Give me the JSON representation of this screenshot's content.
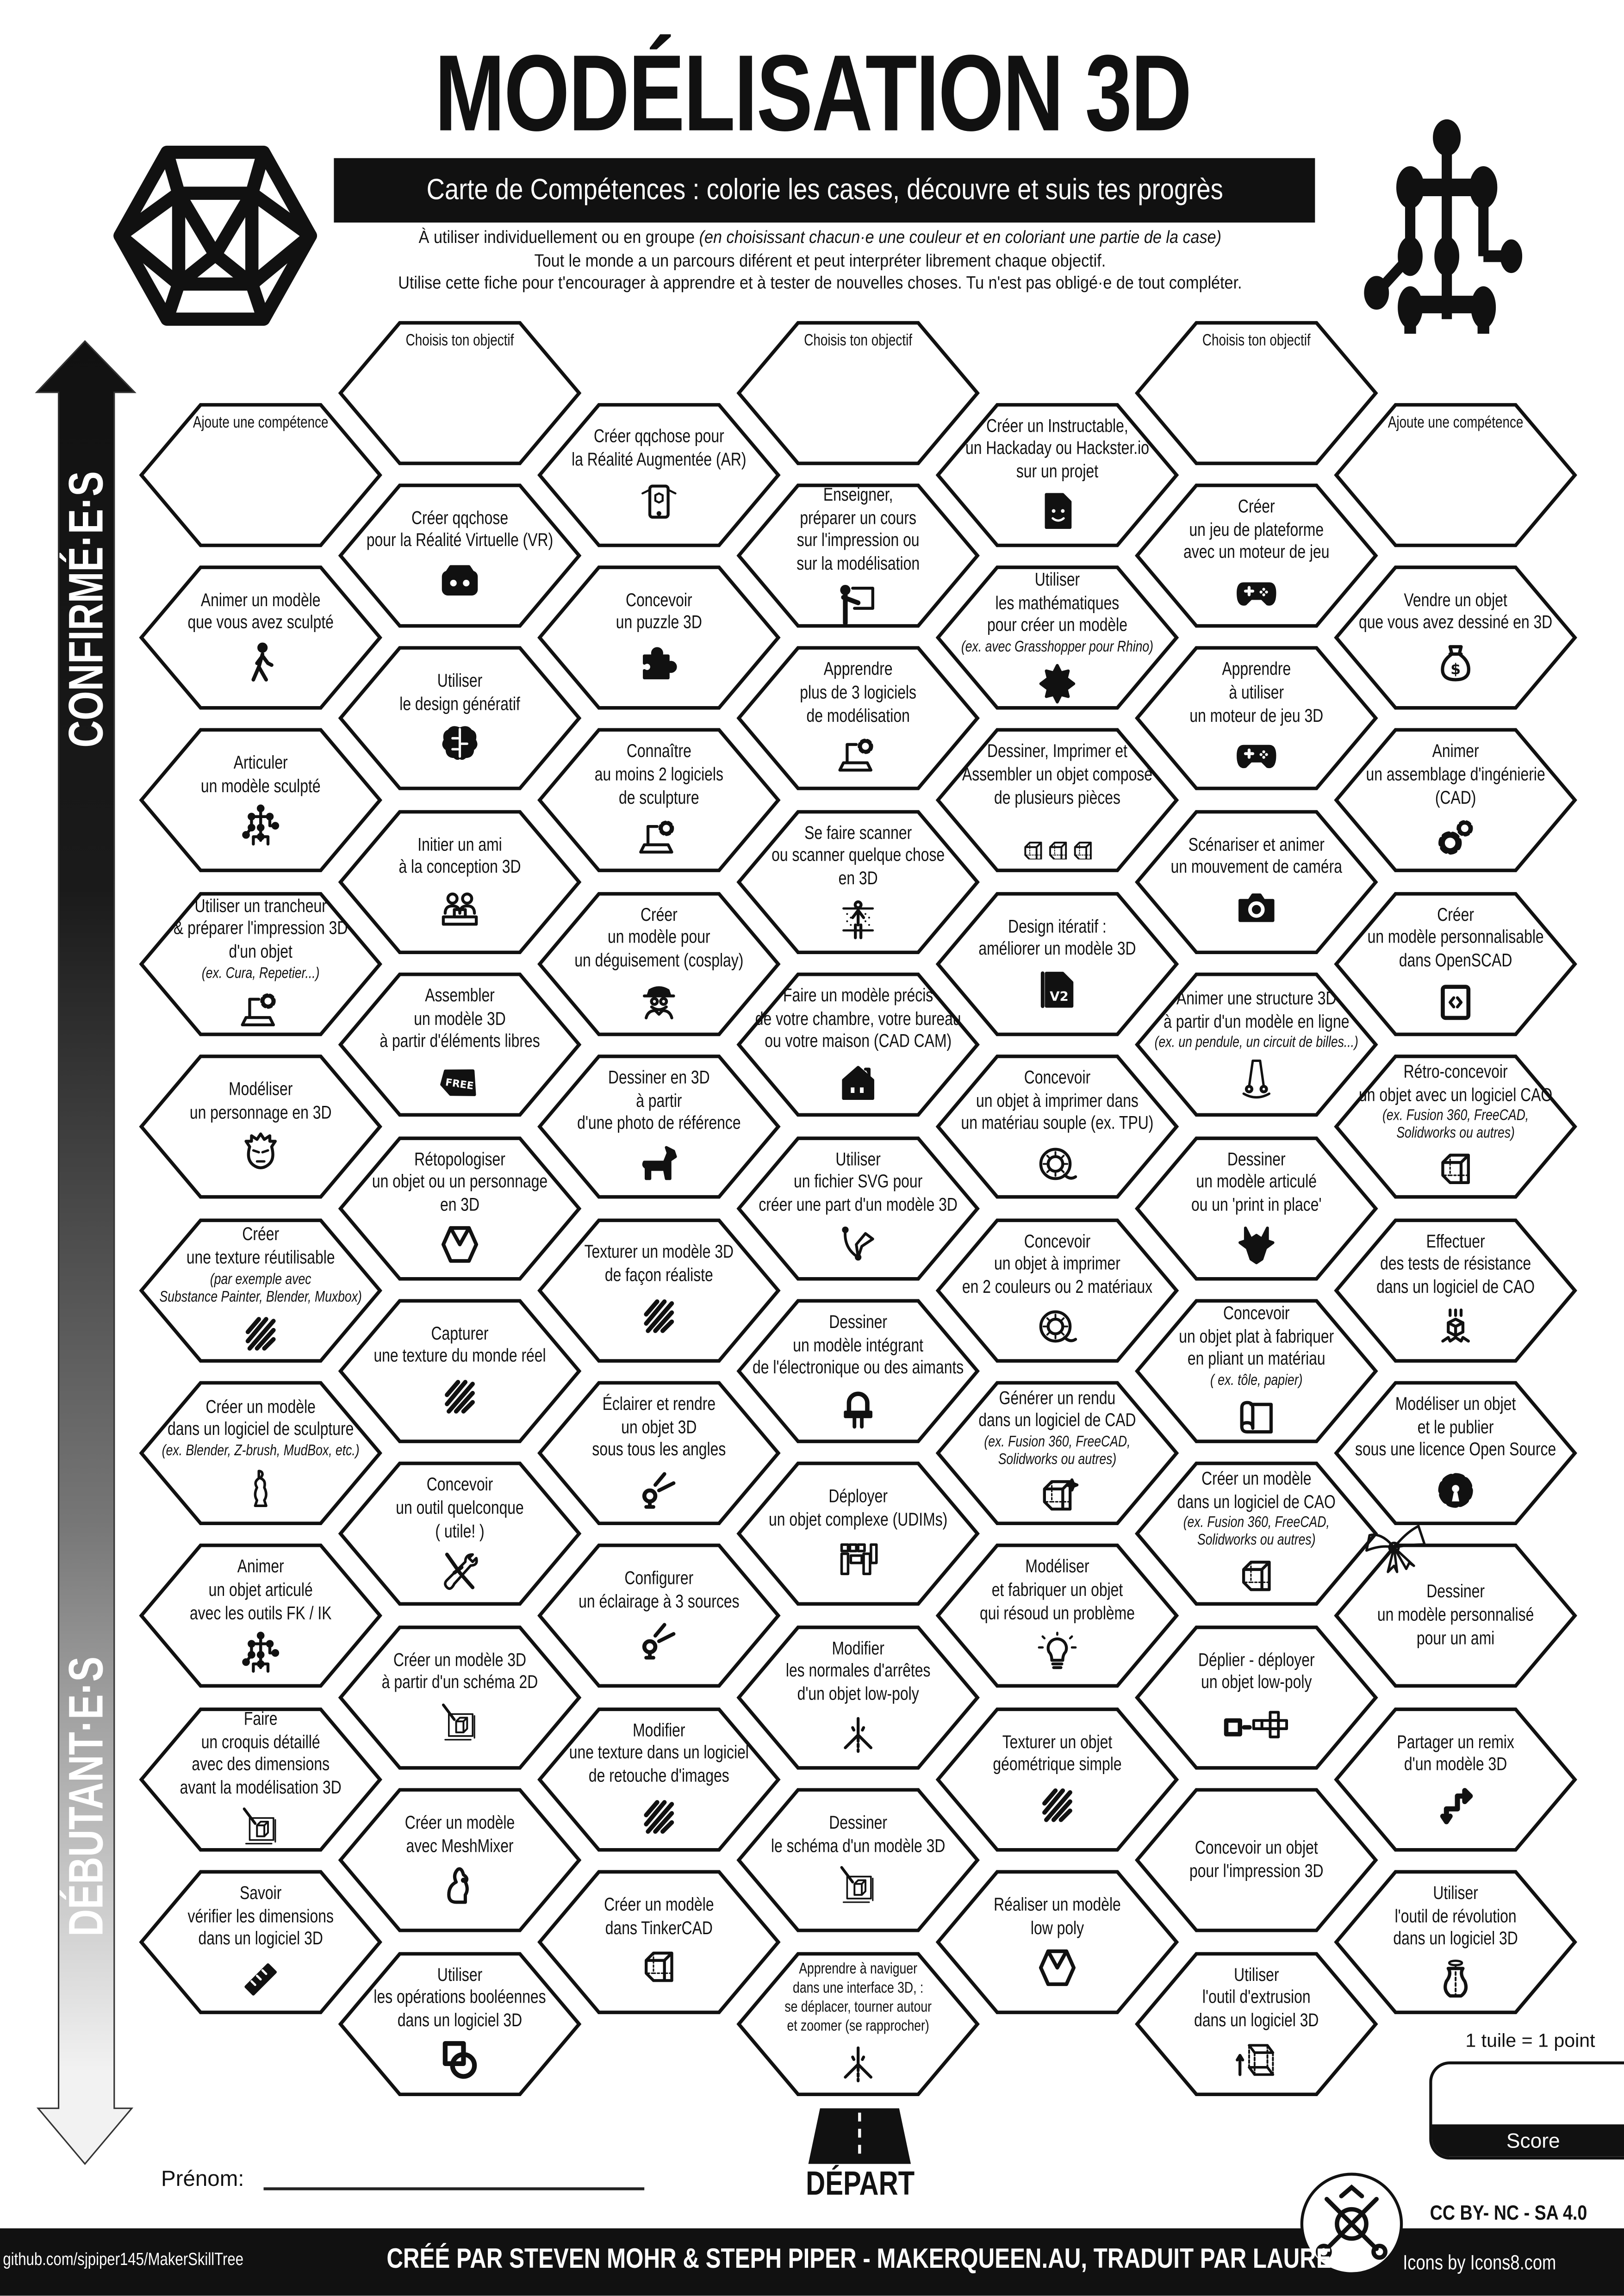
{
  "header": {
    "title": "MODÉLISATION 3D",
    "subtitle": "Carte de Compétences : colorie les cases, découvre et suis tes progrès",
    "intro_line1": "À utiliser individuellement ou en groupe ",
    "intro_line1_italic": "(en choisissant chacun·e une couleur et en coloriant une partie de la case)",
    "intro_line2": "Tout le monde a un parcours diférent et peut interpréter librement chaque objectif.",
    "intro_line3": "Utilise cette fiche pour t'encourager à apprendre et à tester de nouvelles choses. Tu n'est pas obligé·e de tout compléter.",
    "left_logo_icon": "icosahedron-icon",
    "right_logo_icon": "skeleton-icon"
  },
  "progress_arrow": {
    "top_label": "CONFIRMÉ·E·S",
    "bottom_label": "DÉBUTANT·E·S"
  },
  "columns": [
    [
      {
        "text": "Ajoute une compétence",
        "placeholder": true
      },
      {
        "text": "Animer un modèle\nque vous avez sculpté",
        "icon": "walking-person"
      },
      {
        "text": "Articuler\nun modèle sculpté",
        "icon": "skeleton"
      },
      {
        "text": "Utiliser un trancheur\n& préparer l'impression 3D\nd'un objet",
        "note": "(ex. Cura, Repetier...)",
        "icon": "laptop-gear"
      },
      {
        "text": "Modéliser\nun personnage en 3D",
        "icon": "face"
      },
      {
        "text": "Créer\nune texture réutilisable",
        "note": "(par exemple avec\nSubstance Painter, Blender, Muxbox)",
        "icon": "hatch"
      },
      {
        "text": "Créer un modèle\ndans un logiciel de sculpture",
        "note": "(ex. Blender, Z-brush, MudBox, etc.)",
        "icon": "statue"
      },
      {
        "text": "Animer\nun objet articulé\navec les outils FK / IK",
        "icon": "skeleton"
      },
      {
        "text": "Faire\nun croquis détaillé\navec des dimensions\navant la modélisation 3D",
        "icon": "sketch-cube"
      },
      {
        "text": "Savoir\nvérifier les dimensions\ndans un logiciel 3D",
        "icon": "ruler"
      }
    ],
    [
      {
        "text": "Choisis ton objectif",
        "placeholder": true
      },
      {
        "text": "Créer qqchose\npour la Réalité Virtuelle (VR)",
        "icon": "vr-headset"
      },
      {
        "text": "Utiliser\nle design génératif",
        "icon": "brain"
      },
      {
        "text": "Initier un ami\nà la conception 3D",
        "icon": "two-people"
      },
      {
        "text": "Assembler\nun modèle 3D\nà partir d'éléments libres",
        "icon": "free-tag"
      },
      {
        "text": "Rétopologiser\nun objet ou un personnage\nen 3D",
        "icon": "polyhedron"
      },
      {
        "text": "Capturer\nune texture du monde réel",
        "icon": "hatch"
      },
      {
        "text": "Concevoir\nun outil quelconque\n( utile! )",
        "icon": "tools"
      },
      {
        "text": "Créer un modèle 3D\nà partir d'un schéma 2D",
        "icon": "sketch-cube"
      },
      {
        "text": "Créer un modèle\navec MeshMixer",
        "icon": "rabbit"
      },
      {
        "text": "Utiliser\nles opérations booléennes\ndans un logiciel 3D",
        "icon": "boolean"
      }
    ],
    [
      {
        "text": "Créer qqchose pour\nla Réalité Augmentée (AR)",
        "icon": "phone-ar"
      },
      {
        "text": "Concevoir\nun puzzle 3D",
        "icon": "puzzle"
      },
      {
        "text": "Connaître\nau moins 2 logiciels\nde sculpture",
        "icon": "laptop-gear"
      },
      {
        "text": "Créer\nun modèle pour\nun déguisement (cosplay)",
        "icon": "spy"
      },
      {
        "text": "Dessiner en 3D\nà partir\nd'une photo de référence",
        "icon": "dog"
      },
      {
        "text": "Texturer un modèle 3D\nde façon réaliste",
        "icon": "hatch"
      },
      {
        "text": "Éclairer et rendre\nun objet 3D\nsous tous les angles",
        "icon": "spotlight"
      },
      {
        "text": "Configurer\nun éclairage à 3 sources",
        "icon": "spotlight"
      },
      {
        "text": "Modifier\nune texture dans un logiciel\nde retouche d'images",
        "icon": "hatch"
      },
      {
        "text": "Créer un modèle\ndans TinkerCAD",
        "icon": "cube"
      }
    ],
    [
      {
        "text": "Choisis ton objectif",
        "placeholder": true
      },
      {
        "text": "Enseigner,\npréparer un cours\nsur l'impression ou\nsur la modélisation",
        "icon": "teacher"
      },
      {
        "text": "Apprendre\nplus de 3 logiciels\nde modélisation",
        "icon": "laptop-gear"
      },
      {
        "text": "Se faire scanner\nou scanner quelque chose\nen 3D",
        "icon": "body-scan"
      },
      {
        "text": "Faire un modèle précis\nde votre chambre, votre bureau\nou votre maison (CAD CAM)",
        "icon": "house"
      },
      {
        "text": "Utiliser\nun fichier SVG pour\ncréer une part d'un modèle 3D",
        "icon": "pen-nib"
      },
      {
        "text": "Dessiner\nun modèle intégrant\nde l'électronique ou des aimants",
        "icon": "led"
      },
      {
        "text": "Déployer\nun objet complexe (UDIMs)",
        "icon": "uv-layout"
      },
      {
        "text": "Modifier\nles normales d'arrêtes\nd'un objet low-poly",
        "icon": "axes"
      },
      {
        "text": "Dessiner\nle schéma d'un modèle 3D",
        "icon": "sketch-cube"
      },
      {
        "text": "Apprendre à naviguer\ndans une interface 3D, :\nse déplacer, tourner autour\net zoomer (se rapprocher)",
        "icon": "axes",
        "small": true
      }
    ],
    [
      {
        "text": "Créer un Instructable,\nun Hackaday ou Hackster.io\nsur un projet",
        "icon": "document-smile"
      },
      {
        "text": "Utiliser\nles mathématiques\npour créer un modèle",
        "note": "(ex. avec Grasshopper pour Rhino)",
        "icon": "fractal"
      },
      {
        "text": "Dessiner, Imprimer et\nAssembler un objet composé\nde plusieurs pièces",
        "icon": "cubes3"
      },
      {
        "text": "Design itératif :\naméliorer un modèle 3D",
        "icon": "file-v2"
      },
      {
        "text": "Concevoir\nun objet à imprimer dans\nun matériau souple (ex. TPU)",
        "icon": "filament"
      },
      {
        "text": "Concevoir\nun objet à imprimer\nen 2 couleurs ou 2 matériaux",
        "icon": "filament"
      },
      {
        "text": "Générer un rendu\ndans un logiciel de CAD",
        "note": "(ex. Fusion 360, FreeCAD,\nSolidworks ou autres)",
        "icon": "cube-sparkle"
      },
      {
        "text": "Modéliser\net fabriquer un objet\nqui résoud un problème",
        "icon": "lightbulb"
      },
      {
        "text": "Texturer un objet\ngéométrique simple",
        "icon": "hatch"
      },
      {
        "text": "Réaliser un modèle\nlow poly",
        "icon": "polyhedron"
      }
    ],
    [
      {
        "text": "Choisis ton objectif",
        "placeholder": true
      },
      {
        "text": "Créer\nun jeu de plateforme\navec un moteur de jeu",
        "icon": "gamepad"
      },
      {
        "text": "Apprendre\nà utiliser\nun moteur de jeu 3D",
        "icon": "gamepad"
      },
      {
        "text": "Scénariser et animer\nun mouvement de caméra",
        "icon": "camera"
      },
      {
        "text": "Animer une structure 3D\nà partir d'un modèle en ligne",
        "note": "(ex. un pendule, un circuit de billes...)",
        "icon": "pendulum"
      },
      {
        "text": "Dessiner\nun modèle articulé\nou un 'print in place'",
        "icon": "dragon"
      },
      {
        "text": "Concevoir\nun objet plat à fabriquer\nen pliant un matériau",
        "note": "( ex. tôle, papier)",
        "icon": "folded-sheet"
      },
      {
        "text": "Créer un modèle\ndans un logiciel de CAO",
        "note": "(ex. Fusion 360, FreeCAD,\nSolidworks ou autres)",
        "icon": "cube"
      },
      {
        "text": "Déplier - déployer\nun objet low-poly",
        "icon": "cube-unfold"
      },
      {
        "text": "Concevoir un objet\npour  l'impression 3D"
      },
      {
        "text": "Utiliser\nl'outil d'extrusion\ndans un logiciel 3D",
        "icon": "extrude"
      }
    ],
    [
      {
        "text": "Ajoute une compétence",
        "placeholder": true
      },
      {
        "text": "Vendre un objet\nque vous avez dessiné en 3D",
        "icon": "money-bag"
      },
      {
        "text": "Animer\nun assemblage d'ingénierie\n(CAD)",
        "icon": "gears"
      },
      {
        "text": "Créer\nun modèle personnalisable\ndans OpenSCAD",
        "icon": "code-window"
      },
      {
        "text": "Rétro-concevoir\nun objet avec un logiciel CAO",
        "note": "(ex. Fusion 360, FreeCAD,\nSolidworks ou autres)",
        "icon": "cube"
      },
      {
        "text": "Effectuer\ndes tests de résistance\ndans un logiciel de CAO",
        "icon": "cube-impact"
      },
      {
        "text": "Modéliser un objet\net le publier\nsous une licence Open Source",
        "icon": "osi-gear"
      },
      {
        "text": "Dessiner\nun modèle personnalisé\npour un ami",
        "icon": "gift-bow"
      },
      {
        "text": "Partager un remix\nd'un modèle 3D",
        "icon": "remix"
      },
      {
        "text": "Utiliser\nl'outil de révolution\ndans un logiciel 3D",
        "icon": "vase"
      }
    ]
  ],
  "bottom": {
    "name_label": "Prénom:",
    "start_label": "DÉPART",
    "start_icon": "road-icon",
    "points_rule": "1 tuile = 1 point",
    "score_label": "Score",
    "license": "CC BY- NC - SA 4.0",
    "badge_icon": "maker-tools-badge-icon"
  },
  "footer": {
    "repo": "github.com/sjpiper145/MakerSkillTree",
    "credit": "CRÉÉ PAR STEVEN MOHR & STEPH PIPER - MAKERQUEEN.AU, TRADUIT PAR LAURE SI",
    "icons_credit": "Icons by Icons8.com"
  },
  "colors": {
    "ink": "#111111",
    "paper": "#ffffff",
    "arrow_light": "#f2f2f2"
  }
}
